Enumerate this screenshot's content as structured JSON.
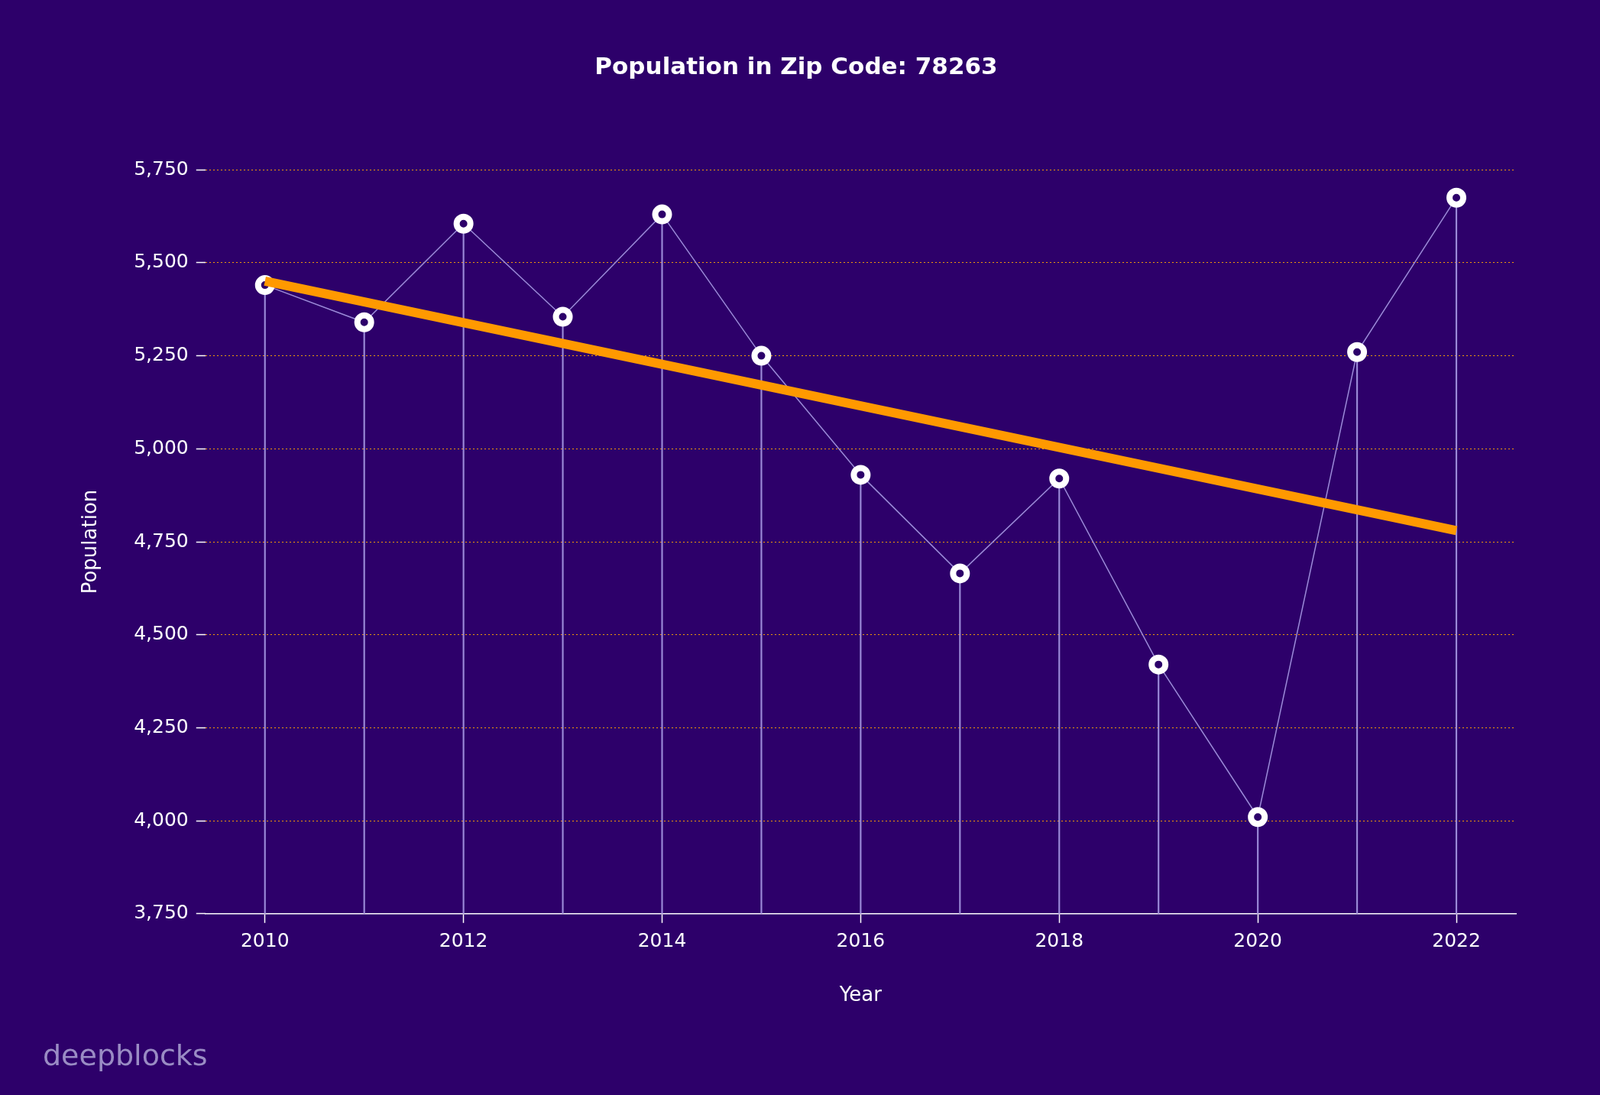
{
  "chart_data": {
    "type": "line",
    "title": "Population in Zip Code: 78263",
    "x_label": "Year",
    "y_label": "Population",
    "x": [
      2010,
      2011,
      2012,
      2013,
      2014,
      2015,
      2016,
      2017,
      2018,
      2019,
      2020,
      2021,
      2022
    ],
    "values": [
      5440,
      5340,
      5605,
      5355,
      5630,
      5250,
      4930,
      4665,
      4920,
      4420,
      4010,
      5260,
      5675
    ],
    "color": "#9b8ad8",
    "marker": "circle",
    "trend_line": {
      "x": [
        2010,
        2022
      ],
      "values": [
        5451,
        4780
      ],
      "color": "#ff9900"
    },
    "xlim": [
      2009.4,
      2022.6
    ],
    "xticks": [
      2010,
      2012,
      2014,
      2016,
      2018,
      2020,
      2022
    ],
    "ylim": [
      3750,
      5750
    ],
    "yticks": [
      {
        "value": 3750,
        "label": "3,750"
      },
      {
        "value": 4000,
        "label": "4,000"
      },
      {
        "value": 4250,
        "label": "4,250"
      },
      {
        "value": 4500,
        "label": "4,500"
      },
      {
        "value": 4750,
        "label": "4,750"
      },
      {
        "value": 5000,
        "label": "5,000"
      },
      {
        "value": 5250,
        "label": "5,250"
      },
      {
        "value": 5500,
        "label": "5,500"
      },
      {
        "value": 5750,
        "label": "5,750"
      }
    ],
    "grid": true,
    "annotation": "deepblocks"
  }
}
